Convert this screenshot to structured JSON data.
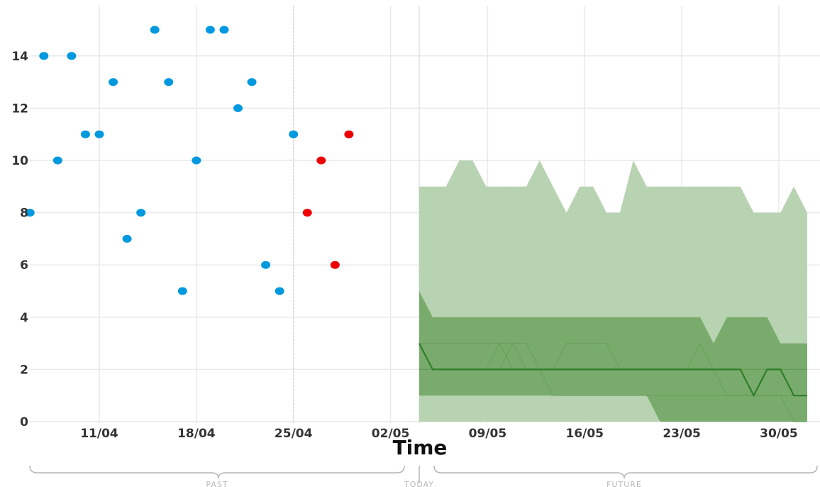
{
  "chart_data": {
    "type": "scatter",
    "title": "",
    "xlabel": "Time",
    "ylabel": "",
    "ylim": [
      0,
      15.6
    ],
    "x_ticks": [
      "11/04",
      "18/04",
      "25/04",
      "02/05",
      "09/05",
      "16/05",
      "23/05",
      "30/05"
    ],
    "y_ticks": [
      0,
      2,
      4,
      6,
      8,
      10,
      12,
      14
    ],
    "grid": true,
    "timeline_segments": [
      "PAST",
      "TODAY",
      "FUTURE"
    ],
    "colors": {
      "observed": "#0099e0",
      "anomaly": "#ee0000",
      "outer_band": "#b8d3b2",
      "inner_band": "#79ac6c",
      "median": "#2f7d28",
      "grid": "#e9e9e9",
      "bracket": "#b5b5b5"
    },
    "observed": [
      {
        "date": "2023-04-06",
        "value": 8
      },
      {
        "date": "2023-04-07",
        "value": 14
      },
      {
        "date": "2023-04-08",
        "value": 10
      },
      {
        "date": "2023-04-09",
        "value": 14
      },
      {
        "date": "2023-04-10",
        "value": 11
      },
      {
        "date": "2023-04-11",
        "value": 11
      },
      {
        "date": "2023-04-12",
        "value": 13
      },
      {
        "date": "2023-04-13",
        "value": 7
      },
      {
        "date": "2023-04-14",
        "value": 8
      },
      {
        "date": "2023-04-15",
        "value": 15
      },
      {
        "date": "2023-04-16",
        "value": 13
      },
      {
        "date": "2023-04-17",
        "value": 5
      },
      {
        "date": "2023-04-18",
        "value": 10
      },
      {
        "date": "2023-04-19",
        "value": 15
      },
      {
        "date": "2023-04-20",
        "value": 15
      },
      {
        "date": "2023-04-21",
        "value": 12
      },
      {
        "date": "2023-04-22",
        "value": 13
      },
      {
        "date": "2023-04-23",
        "value": 6
      },
      {
        "date": "2023-04-24",
        "value": 5
      },
      {
        "date": "2023-04-25",
        "value": 11
      }
    ],
    "anomalies": [
      {
        "date": "2023-04-26",
        "value": 8
      },
      {
        "date": "2023-04-27",
        "value": 10
      },
      {
        "date": "2023-04-28",
        "value": 6
      },
      {
        "date": "2023-04-29",
        "value": 11
      }
    ],
    "forecast": {
      "dates": [
        "2023-05-02",
        "2023-05-03",
        "2023-05-04",
        "2023-05-05",
        "2023-05-06",
        "2023-05-07",
        "2023-05-08",
        "2023-05-09",
        "2023-05-10",
        "2023-05-11",
        "2023-05-12",
        "2023-05-13",
        "2023-05-14",
        "2023-05-15",
        "2023-05-16",
        "2023-05-17",
        "2023-05-18",
        "2023-05-19",
        "2023-05-20",
        "2023-05-21",
        "2023-05-22",
        "2023-05-23",
        "2023-05-24",
        "2023-05-25",
        "2023-05-26",
        "2023-05-27",
        "2023-05-28",
        "2023-05-29",
        "2023-05-30",
        "2023-05-31"
      ],
      "upper_outer": [
        9,
        9,
        9,
        10,
        10,
        9,
        9,
        9,
        9,
        10,
        9,
        8,
        9,
        9,
        8,
        8,
        10,
        9,
        9,
        9,
        9,
        9,
        9,
        9,
        9,
        8,
        8,
        8,
        9,
        8
      ],
      "upper_inner": [
        5,
        4,
        4,
        4,
        4,
        4,
        4,
        4,
        4,
        4,
        4,
        4,
        4,
        4,
        4,
        4,
        4,
        4,
        4,
        4,
        4,
        4,
        3,
        4,
        4,
        4,
        4,
        3,
        3,
        3
      ],
      "median": [
        3,
        2,
        2,
        2,
        2,
        2,
        2,
        2,
        2,
        2,
        2,
        2,
        2,
        2,
        2,
        2,
        2,
        2,
        2,
        2,
        2,
        2,
        2,
        2,
        2,
        1,
        2,
        2,
        1,
        1
      ],
      "lower_inner": [
        1,
        1,
        1,
        1,
        1,
        1,
        1,
        1,
        1,
        1,
        1,
        1,
        1,
        1,
        1,
        1,
        1,
        1,
        0,
        0,
        0,
        0,
        0,
        0,
        0,
        0,
        0,
        0,
        0,
        0
      ],
      "lower_outer": [
        0,
        0,
        0,
        0,
        0,
        0,
        0,
        0,
        0,
        0,
        0,
        0,
        0,
        0,
        0,
        0,
        0,
        0,
        0,
        0,
        0,
        0,
        0,
        0,
        0,
        0,
        0,
        0,
        0,
        0
      ],
      "sample_paths": [
        [
          3,
          3,
          3,
          3,
          3,
          3,
          3,
          3,
          2,
          2,
          2,
          3,
          3,
          3,
          3,
          2,
          2,
          2,
          2,
          2,
          2,
          2,
          2,
          2,
          2,
          2,
          2,
          2,
          2,
          2
        ],
        [
          2,
          2,
          2,
          2,
          2,
          2,
          3,
          2,
          2,
          2,
          2,
          2,
          2,
          2,
          2,
          2,
          2,
          2,
          2,
          2,
          2,
          2,
          2,
          2,
          2,
          2,
          2,
          2,
          2,
          2
        ],
        [
          2,
          2,
          2,
          2,
          2,
          2,
          2,
          3,
          3,
          2,
          1,
          1,
          1,
          1,
          1,
          1,
          1,
          1,
          1,
          1,
          1,
          1,
          1,
          1,
          1,
          1,
          1,
          1,
          1,
          1
        ],
        [
          2,
          2,
          2,
          2,
          2,
          2,
          2,
          2,
          2,
          2,
          2,
          2,
          2,
          2,
          2,
          2,
          2,
          2,
          2,
          2,
          2,
          3,
          2,
          1,
          1,
          1,
          1,
          1,
          0,
          0
        ]
      ]
    }
  }
}
